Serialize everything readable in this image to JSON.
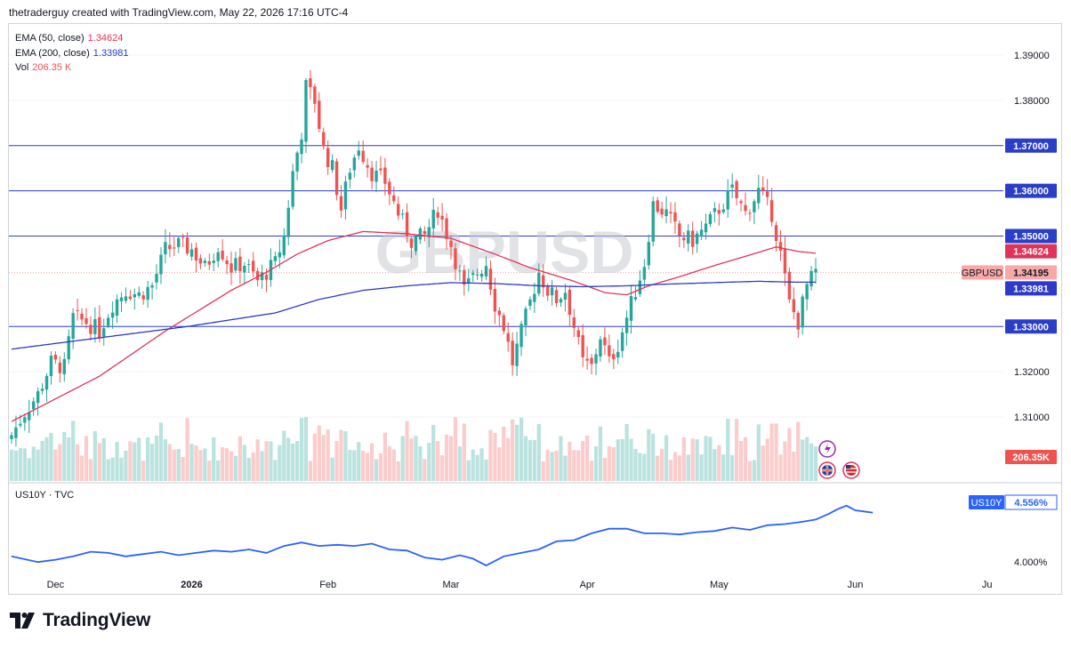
{
  "header": {
    "credit": "thetraderguy created with TradingView.com, May 22, 2026 17:16 UTC-4"
  },
  "indicators": [
    {
      "label": "EMA (50, close)",
      "value": "1.34624",
      "color": "#e0335a"
    },
    {
      "label": "EMA (200, close)",
      "value": "1.33981",
      "color": "#2f39c9"
    },
    {
      "label": "Vol",
      "value": "206.35 K",
      "color": "#ef5350"
    }
  ],
  "sub_pane": {
    "label": "US10Y · TVC",
    "badge": "US10Y",
    "badge_value": "4.556%",
    "tick": "4.000%",
    "line_color": "#2962ff"
  },
  "watermark": "GBPUSD",
  "price_badges": [
    {
      "name": "ema50-badge",
      "text": "1.34624",
      "value": 1.34624,
      "bg": "#e0335a",
      "fg": "#ffffff"
    },
    {
      "name": "current-price-badge",
      "label": "GBPUSD",
      "text": "1.34195",
      "value": 1.34195,
      "bg": "#f7a9a7",
      "fg": "#131722"
    },
    {
      "name": "ema200-badge",
      "text": "1.33981",
      "value": 1.33981,
      "bg": "#2f39c9",
      "fg": "#ffffff"
    }
  ],
  "volume_badge": "206.35K",
  "footer": {
    "brand": "TradingView"
  },
  "chart_data": {
    "type": "candlestick",
    "symbol": "GBPUSD",
    "y_ticks": [
      "1.39000",
      "1.38000",
      "1.37000",
      "1.36000",
      "1.35000",
      "1.32000",
      "1.31000"
    ],
    "y_tick_values": [
      1.39,
      1.38,
      1.37,
      1.36,
      1.35,
      1.32,
      1.31
    ],
    "ylim": [
      1.2995,
      1.3975
    ],
    "horizontal_lines": [
      {
        "value": 1.37,
        "label": "1.37000"
      },
      {
        "value": 1.36,
        "label": "1.36000"
      },
      {
        "value": 1.35,
        "label": "1.35000"
      },
      {
        "value": 1.33,
        "label": "1.33000"
      }
    ],
    "x_ticks": [
      "Dec",
      "2026",
      "Feb",
      "Mar",
      "Apr",
      "May",
      "Jun",
      "Ju"
    ],
    "x_tick_positions": [
      0,
      31,
      62,
      90,
      121,
      151,
      182,
      212
    ],
    "bar_count": 184,
    "day_start": -10,
    "keypoints_close": [
      [
        -10,
        1.306
      ],
      [
        -7,
        1.311
      ],
      [
        -4,
        1.315
      ],
      [
        -1,
        1.322
      ],
      [
        2,
        1.321
      ],
      [
        4,
        1.332
      ],
      [
        7,
        1.331
      ],
      [
        10,
        1.329
      ],
      [
        13,
        1.335
      ],
      [
        16,
        1.338
      ],
      [
        19,
        1.337
      ],
      [
        22,
        1.339
      ],
      [
        25,
        1.347
      ],
      [
        28,
        1.348
      ],
      [
        31,
        1.347
      ],
      [
        34,
        1.343
      ],
      [
        37,
        1.348
      ],
      [
        40,
        1.343
      ],
      [
        43,
        1.344
      ],
      [
        46,
        1.34
      ],
      [
        48,
        1.342
      ],
      [
        50,
        1.344
      ],
      [
        52,
        1.35
      ],
      [
        54,
        1.364
      ],
      [
        56,
        1.373
      ],
      [
        57,
        1.383
      ],
      [
        59,
        1.38
      ],
      [
        61,
        1.369
      ],
      [
        63,
        1.365
      ],
      [
        65,
        1.356
      ],
      [
        67,
        1.365
      ],
      [
        69,
        1.37
      ],
      [
        72,
        1.364
      ],
      [
        75,
        1.362
      ],
      [
        78,
        1.355
      ],
      [
        81,
        1.349
      ],
      [
        84,
        1.35
      ],
      [
        87,
        1.356
      ],
      [
        90,
        1.348
      ],
      [
        93,
        1.338
      ],
      [
        96,
        1.342
      ],
      [
        98,
        1.344
      ],
      [
        100,
        1.335
      ],
      [
        102,
        1.33
      ],
      [
        104,
        1.322
      ],
      [
        107,
        1.332
      ],
      [
        110,
        1.342
      ],
      [
        112,
        1.338
      ],
      [
        114,
        1.336
      ],
      [
        116,
        1.338
      ],
      [
        118,
        1.33
      ],
      [
        120,
        1.322
      ],
      [
        122,
        1.321
      ],
      [
        124,
        1.328
      ],
      [
        126,
        1.322
      ],
      [
        128,
        1.326
      ],
      [
        130,
        1.332
      ],
      [
        132,
        1.338
      ],
      [
        134,
        1.344
      ],
      [
        136,
        1.357
      ],
      [
        139,
        1.355
      ],
      [
        142,
        1.35
      ],
      [
        145,
        1.349
      ],
      [
        148,
        1.352
      ],
      [
        151,
        1.356
      ],
      [
        154,
        1.36
      ],
      [
        157,
        1.355
      ],
      [
        160,
        1.36
      ],
      [
        163,
        1.355
      ],
      [
        165,
        1.346
      ],
      [
        167,
        1.335
      ],
      [
        169,
        1.331
      ],
      [
        171,
        1.339
      ],
      [
        173,
        1.342
      ]
    ],
    "ema50_points": [
      [
        -10,
        1.309
      ],
      [
        10,
        1.319
      ],
      [
        25,
        1.329
      ],
      [
        40,
        1.338
      ],
      [
        48,
        1.342
      ],
      [
        55,
        1.346
      ],
      [
        62,
        1.349
      ],
      [
        70,
        1.351
      ],
      [
        80,
        1.3505
      ],
      [
        90,
        1.3495
      ],
      [
        100,
        1.346
      ],
      [
        108,
        1.343
      ],
      [
        118,
        1.34
      ],
      [
        125,
        1.3375
      ],
      [
        130,
        1.337
      ],
      [
        135,
        1.339
      ],
      [
        142,
        1.341
      ],
      [
        150,
        1.3435
      ],
      [
        158,
        1.3458
      ],
      [
        164,
        1.3476
      ],
      [
        169,
        1.3466
      ],
      [
        173,
        1.3462
      ]
    ],
    "ema200_points": [
      [
        -10,
        1.325
      ],
      [
        10,
        1.3275
      ],
      [
        30,
        1.33
      ],
      [
        50,
        1.333
      ],
      [
        60,
        1.336
      ],
      [
        70,
        1.338
      ],
      [
        80,
        1.339
      ],
      [
        90,
        1.3397
      ],
      [
        100,
        1.3395
      ],
      [
        110,
        1.339
      ],
      [
        120,
        1.3388
      ],
      [
        130,
        1.339
      ],
      [
        140,
        1.3394
      ],
      [
        150,
        1.3397
      ],
      [
        160,
        1.34
      ],
      [
        168,
        1.3398
      ],
      [
        173,
        1.3398
      ]
    ],
    "us10y": {
      "label": "US10Y",
      "ylim": [
        3.94,
        4.62
      ],
      "tick": {
        "value": 4.0,
        "label": "4.000%"
      },
      "last": 4.556,
      "points": [
        [
          -10,
          4.05
        ],
        [
          -4,
          4.0
        ],
        [
          0,
          4.02
        ],
        [
          4,
          4.05
        ],
        [
          8,
          4.09
        ],
        [
          12,
          4.08
        ],
        [
          16,
          4.05
        ],
        [
          20,
          4.07
        ],
        [
          24,
          4.09
        ],
        [
          28,
          4.06
        ],
        [
          32,
          4.08
        ],
        [
          36,
          4.1
        ],
        [
          40,
          4.09
        ],
        [
          44,
          4.11
        ],
        [
          48,
          4.08
        ],
        [
          52,
          4.14
        ],
        [
          56,
          4.17
        ],
        [
          60,
          4.14
        ],
        [
          64,
          4.15
        ],
        [
          68,
          4.14
        ],
        [
          72,
          4.16
        ],
        [
          76,
          4.11
        ],
        [
          80,
          4.1
        ],
        [
          84,
          4.04
        ],
        [
          88,
          4.02
        ],
        [
          92,
          4.06
        ],
        [
          95,
          4.03
        ],
        [
          98,
          3.97
        ],
        [
          102,
          4.05
        ],
        [
          106,
          4.08
        ],
        [
          110,
          4.11
        ],
        [
          114,
          4.18
        ],
        [
          118,
          4.19
        ],
        [
          122,
          4.25
        ],
        [
          126,
          4.29
        ],
        [
          130,
          4.29
        ],
        [
          134,
          4.25
        ],
        [
          138,
          4.25
        ],
        [
          142,
          4.24
        ],
        [
          146,
          4.26
        ],
        [
          150,
          4.27
        ],
        [
          154,
          4.3
        ],
        [
          158,
          4.28
        ],
        [
          162,
          4.32
        ],
        [
          166,
          4.33
        ],
        [
          170,
          4.35
        ],
        [
          173,
          4.37
        ],
        [
          176,
          4.42
        ],
        [
          178,
          4.46
        ],
        [
          180,
          4.49
        ],
        [
          182,
          4.45
        ],
        [
          184,
          4.44
        ],
        [
          186,
          4.43
        ]
      ]
    }
  }
}
